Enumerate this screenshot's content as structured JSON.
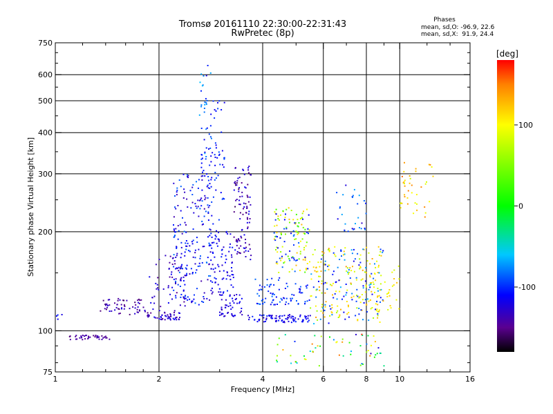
{
  "chart_data": {
    "type": "scatter",
    "title": "Tromsø 20161110 22:30:00-22:31:43",
    "subtitle": "RwPretec (8p)",
    "xlabel": "Frequency [MHz]",
    "ylabel": "Stationary phase Virtual Height [km]",
    "x_scale": "log",
    "y_scale": "log",
    "xlim": [
      1,
      16
    ],
    "ylim": [
      75,
      750
    ],
    "x_ticks": [
      1,
      2,
      4,
      6,
      8,
      10,
      16
    ],
    "x_tick_labels": [
      "1",
      "2",
      "4",
      "6",
      "8",
      "10",
      "16"
    ],
    "x_minor_ticks": [
      1.2,
      1.4,
      1.6,
      1.8,
      3,
      5,
      7,
      9,
      12,
      14
    ],
    "x_grid": [
      2,
      4,
      6,
      8,
      10
    ],
    "y_ticks": [
      75,
      100,
      200,
      300,
      400,
      500,
      600,
      750
    ],
    "y_tick_labels": [
      "75",
      "100",
      "200",
      "300",
      "400",
      "500",
      "600",
      "750"
    ],
    "y_minor_ticks": [
      80,
      90,
      150,
      250,
      350,
      450,
      550,
      650,
      700
    ],
    "y_grid": [
      100,
      200,
      300,
      400,
      500,
      600
    ],
    "grid": true,
    "stats": {
      "heading": "Phases",
      "line_o": "mean, sd,O: -96.9, 22.6",
      "line_x": "mean, sd,X:  91.9, 24.4"
    },
    "colorbar": {
      "label": "[deg]",
      "range": [
        -180,
        180
      ],
      "ticks": [
        100,
        0,
        -100
      ],
      "tick_labels": [
        "100",
        "0",
        "-100"
      ],
      "stops": [
        {
          "v": -180,
          "color": "#000000"
        },
        {
          "v": -150,
          "color": "#5a0090"
        },
        {
          "v": -110,
          "color": "#0000ff"
        },
        {
          "v": -60,
          "color": "#00c8ff"
        },
        {
          "v": 0,
          "color": "#00ff00"
        },
        {
          "v": 100,
          "color": "#ffff00"
        },
        {
          "v": 150,
          "color": "#ff8000"
        },
        {
          "v": 180,
          "color": "#ff0000"
        }
      ]
    },
    "clusters": [
      {
        "f": [
          1.1,
          1.45
        ],
        "h": [
          94,
          97
        ],
        "phase": [
          -155,
          -135
        ],
        "n": 40
      },
      {
        "f": [
          1.0,
          1.05
        ],
        "h": [
          108,
          112
        ],
        "phase": [
          -130,
          -100
        ],
        "n": 4
      },
      {
        "f": [
          1.35,
          1.9
        ],
        "h": [
          112,
          126
        ],
        "phase": [
          -160,
          -120
        ],
        "n": 60
      },
      {
        "f": [
          1.85,
          2.3
        ],
        "h": [
          108,
          112
        ],
        "phase": [
          -150,
          -110
        ],
        "n": 40
      },
      {
        "f": [
          1.85,
          2.4
        ],
        "h": [
          112,
          170
        ],
        "phase": [
          -150,
          -110
        ],
        "n": 70
      },
      {
        "f": [
          2.2,
          2.85
        ],
        "h": [
          120,
          300
        ],
        "phase": [
          -140,
          -80
        ],
        "n": 200
      },
      {
        "f": [
          2.6,
          2.85
        ],
        "h": [
          300,
          650
        ],
        "phase": [
          -120,
          -60
        ],
        "n": 40
      },
      {
        "f": [
          2.75,
          3.1
        ],
        "h": [
          200,
          500
        ],
        "phase": [
          -120,
          -90
        ],
        "n": 60
      },
      {
        "f": [
          2.8,
          3.3
        ],
        "h": [
          130,
          200
        ],
        "phase": [
          -130,
          -100
        ],
        "n": 80
      },
      {
        "f": [
          3.3,
          3.7
        ],
        "h": [
          160,
          320
        ],
        "phase": [
          -160,
          -110
        ],
        "n": 100
      },
      {
        "f": [
          3.0,
          3.5
        ],
        "h": [
          110,
          130
        ],
        "phase": [
          -140,
          -110
        ],
        "n": 50
      },
      {
        "f": [
          3.6,
          5.5
        ],
        "h": [
          106,
          112
        ],
        "phase": [
          -130,
          -100
        ],
        "n": 80
      },
      {
        "f": [
          3.8,
          5.5
        ],
        "h": [
          120,
          145
        ],
        "phase": [
          -120,
          -80
        ],
        "n": 80
      },
      {
        "f": [
          4.3,
          5.5
        ],
        "h": [
          150,
          240
        ],
        "phase": [
          20,
          130
        ],
        "n": 90
      },
      {
        "f": [
          4.3,
          5.5
        ],
        "h": [
          150,
          240
        ],
        "phase": [
          -120,
          -80
        ],
        "n": 40
      },
      {
        "f": [
          5.5,
          9.0
        ],
        "h": [
          105,
          180
        ],
        "phase": [
          60,
          140
        ],
        "n": 150
      },
      {
        "f": [
          5.5,
          9.0
        ],
        "h": [
          105,
          180
        ],
        "phase": [
          -120,
          -60
        ],
        "n": 100
      },
      {
        "f": [
          6.5,
          8.0
        ],
        "h": [
          200,
          280
        ],
        "phase": [
          -130,
          -60
        ],
        "n": 30
      },
      {
        "f": [
          4.3,
          9.0
        ],
        "h": [
          78,
          98
        ],
        "phase": [
          -140,
          170
        ],
        "n": 60
      },
      {
        "f": [
          10.0,
          12.5
        ],
        "h": [
          220,
          330
        ],
        "phase": [
          80,
          160
        ],
        "n": 40
      },
      {
        "f": [
          8.0,
          10.0
        ],
        "h": [
          110,
          160
        ],
        "phase": [
          80,
          130
        ],
        "n": 40
      }
    ]
  }
}
